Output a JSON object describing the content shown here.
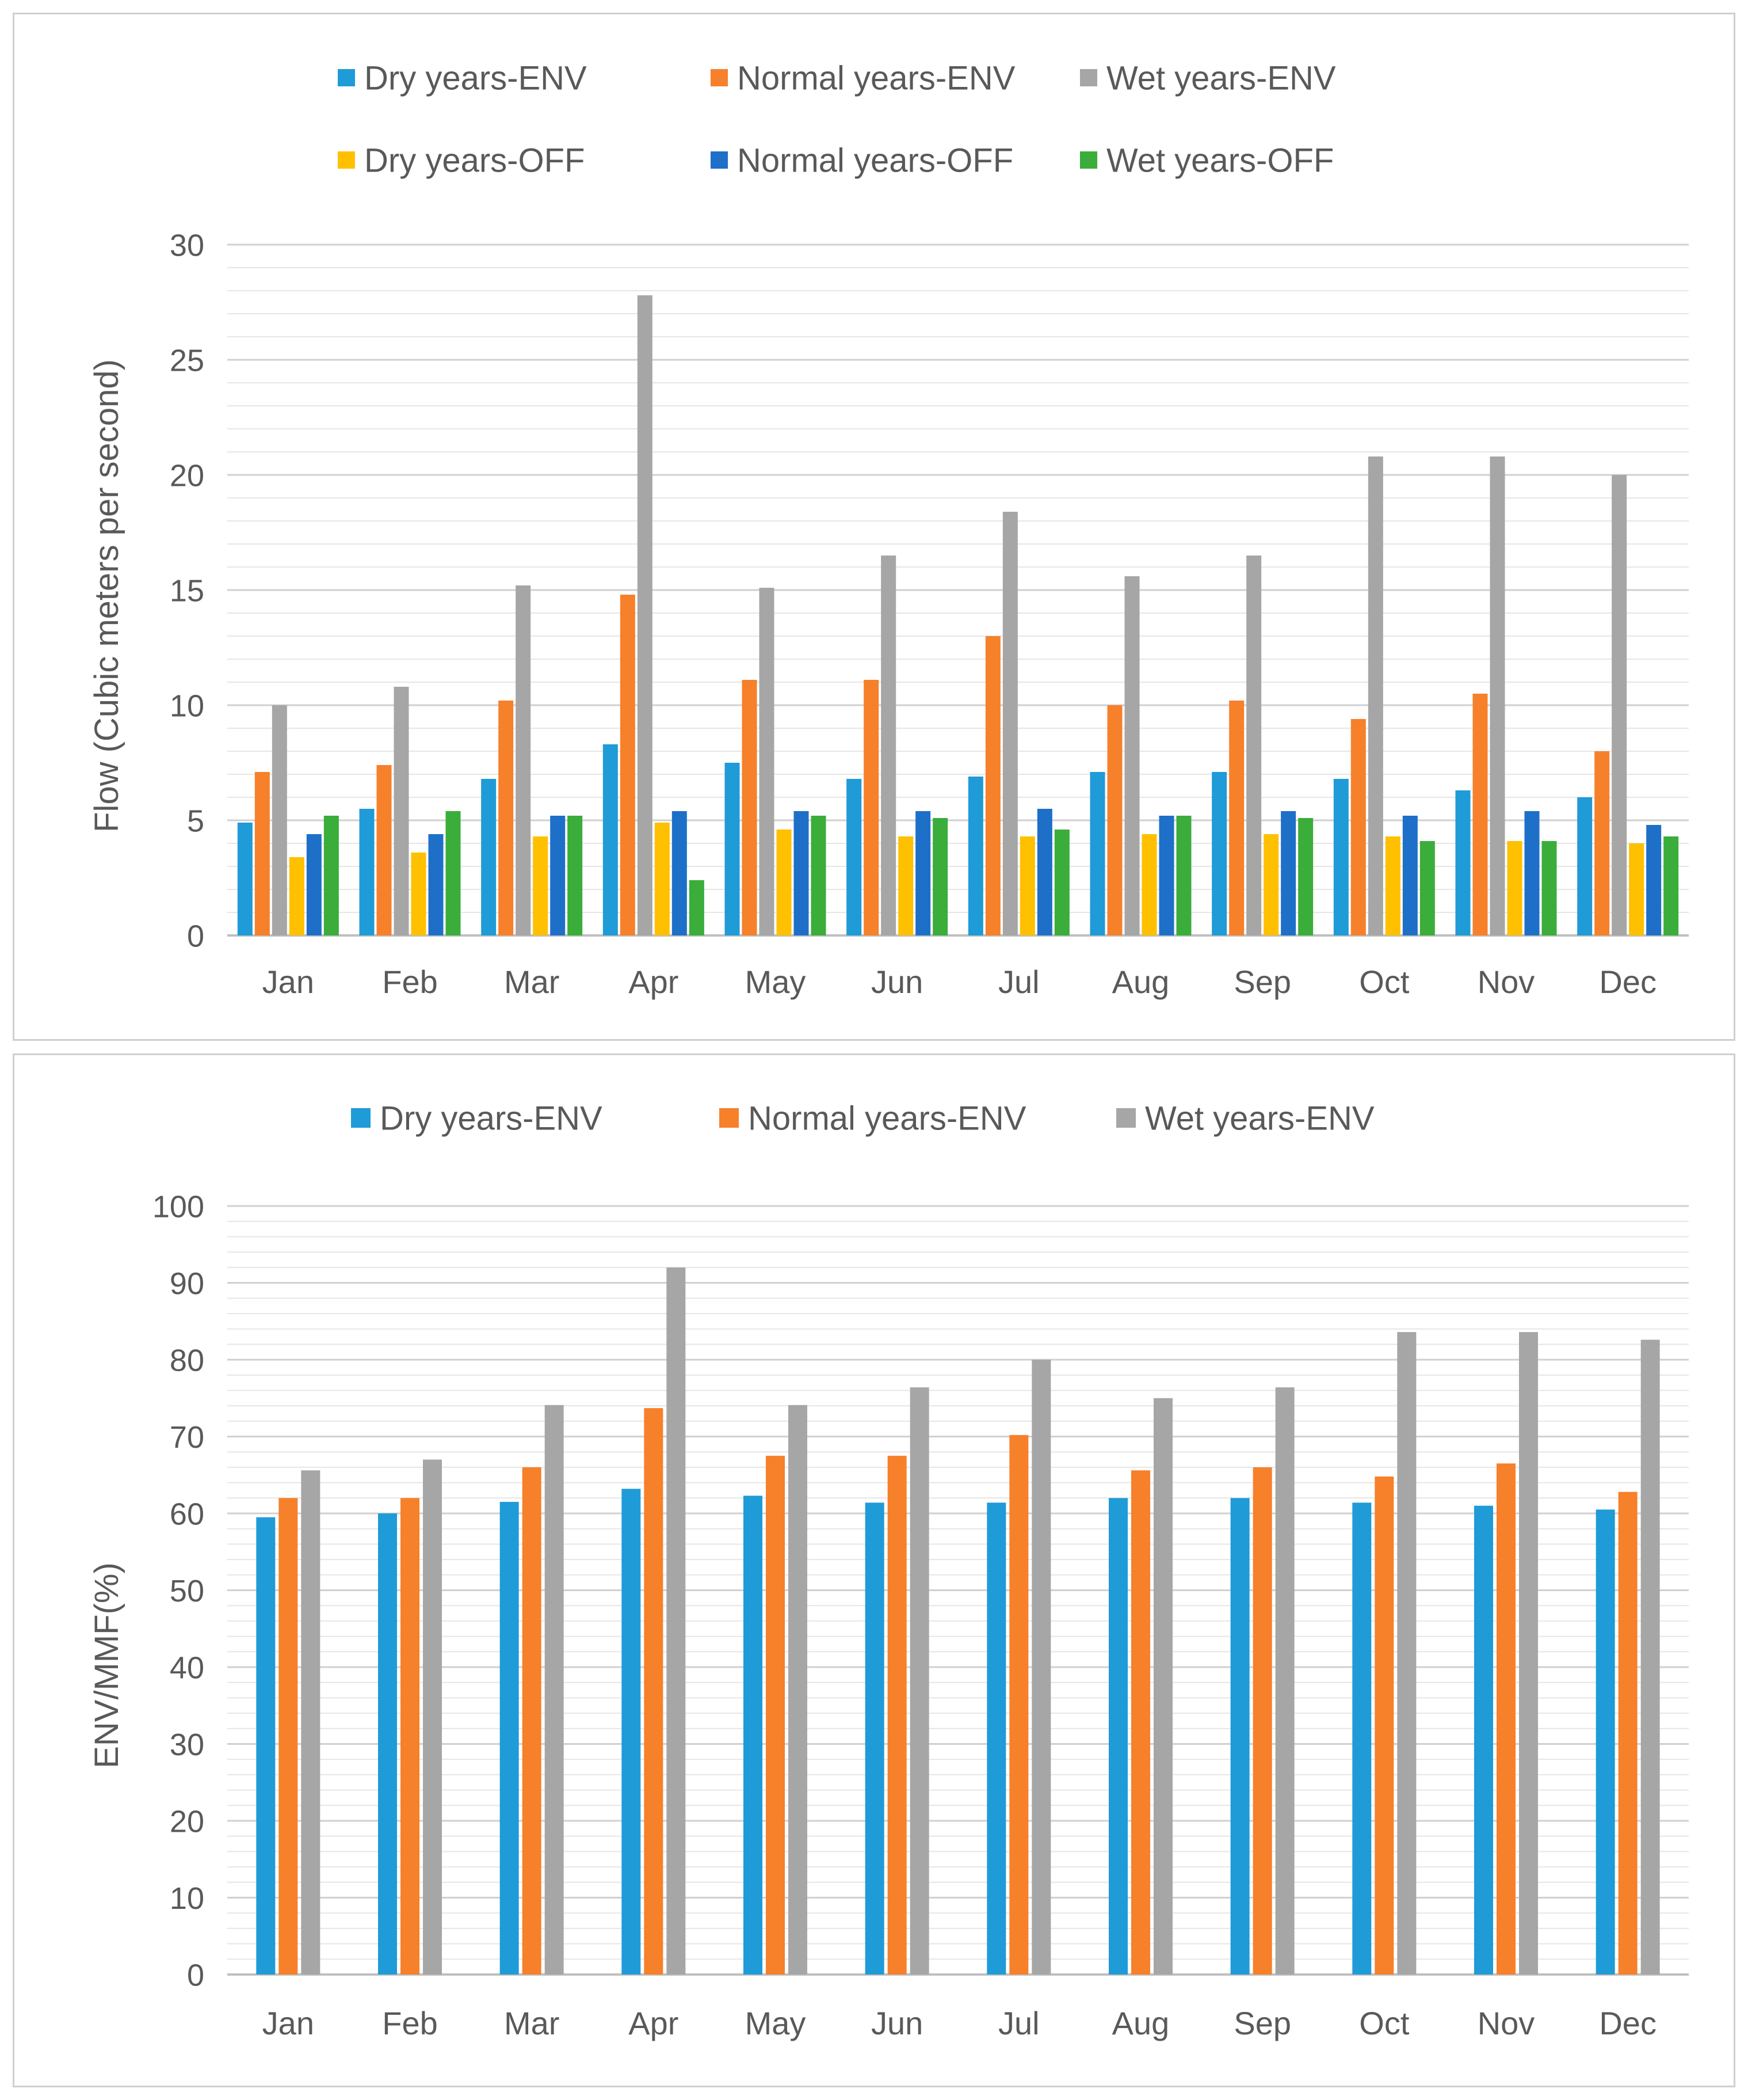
{
  "chart_data": [
    {
      "type": "bar",
      "title": "",
      "xlabel": "",
      "ylabel": "Flow (Cubic meters per second)",
      "ylim": [
        0,
        30
      ],
      "yticks": [
        0,
        5,
        10,
        15,
        20,
        25,
        30
      ],
      "minor_gridline_step": 1,
      "grid": true,
      "legend_position": "top",
      "categories": [
        "Jan",
        "Feb",
        "Mar",
        "Apr",
        "May",
        "Jun",
        "Jul",
        "Aug",
        "Sep",
        "Oct",
        "Nov",
        "Dec"
      ],
      "series": [
        {
          "name": "Dry years-ENV",
          "color": "#1f9bd7",
          "values": [
            4.9,
            5.5,
            6.8,
            8.3,
            7.5,
            6.8,
            6.9,
            7.1,
            7.1,
            6.8,
            6.3,
            6.0
          ]
        },
        {
          "name": "Normal years-ENV",
          "color": "#f7802a",
          "values": [
            7.1,
            7.4,
            10.2,
            14.8,
            11.1,
            11.1,
            13.0,
            10.0,
            10.2,
            9.4,
            10.5,
            8.0
          ]
        },
        {
          "name": "Wet years-ENV",
          "color": "#a6a6a6",
          "values": [
            10.0,
            10.8,
            15.2,
            27.8,
            15.1,
            16.5,
            18.4,
            15.6,
            16.5,
            20.8,
            20.8,
            20.0
          ]
        },
        {
          "name": "Dry years-OFF",
          "color": "#ffc000",
          "values": [
            3.4,
            3.6,
            4.3,
            4.9,
            4.6,
            4.3,
            4.3,
            4.4,
            4.4,
            4.3,
            4.1,
            4.0
          ]
        },
        {
          "name": "Normal years-OFF",
          "color": "#1e6fc8",
          "values": [
            4.4,
            4.4,
            5.2,
            5.4,
            5.4,
            5.4,
            5.5,
            5.2,
            5.4,
            5.2,
            5.4,
            4.8
          ]
        },
        {
          "name": "Wet years-OFF",
          "color": "#3aad3a",
          "values": [
            5.2,
            5.4,
            5.2,
            2.4,
            5.2,
            5.1,
            4.6,
            5.2,
            5.1,
            4.1,
            4.1,
            4.3
          ]
        }
      ]
    },
    {
      "type": "bar",
      "title": "",
      "xlabel": "",
      "ylabel": "ENV/MMF(%)",
      "ylim": [
        0,
        100
      ],
      "yticks": [
        0,
        10,
        20,
        30,
        40,
        50,
        60,
        70,
        80,
        90,
        100
      ],
      "minor_gridline_step": 2,
      "grid": true,
      "legend_position": "top",
      "categories": [
        "Jan",
        "Feb",
        "Mar",
        "Apr",
        "May",
        "Jun",
        "Jul",
        "Aug",
        "Sep",
        "Oct",
        "Nov",
        "Dec"
      ],
      "series": [
        {
          "name": "Dry years-ENV",
          "color": "#1f9bd7",
          "values": [
            59.5,
            60.0,
            61.5,
            63.2,
            62.3,
            61.4,
            61.4,
            62.0,
            62.0,
            61.4,
            61.0,
            60.5
          ]
        },
        {
          "name": "Normal years-ENV",
          "color": "#f7802a",
          "values": [
            62.0,
            62.0,
            66.0,
            73.7,
            67.5,
            67.5,
            70.2,
            65.6,
            66.0,
            64.8,
            66.5,
            62.8
          ]
        },
        {
          "name": "Wet years-ENV",
          "color": "#a6a6a6",
          "values": [
            65.6,
            67.0,
            74.1,
            92.0,
            74.1,
            76.4,
            80.0,
            75.0,
            76.4,
            83.6,
            83.6,
            82.6
          ]
        }
      ]
    }
  ]
}
